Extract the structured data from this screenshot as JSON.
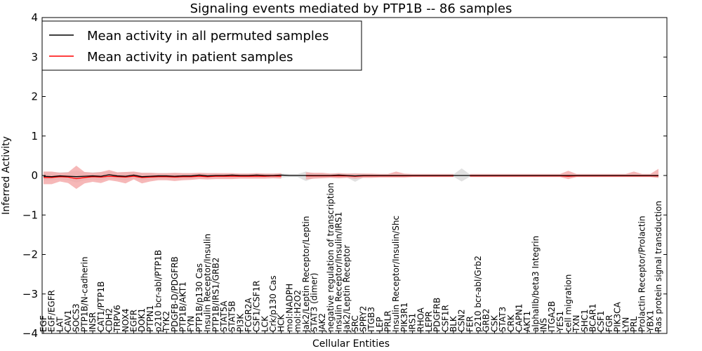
{
  "chart_data": {
    "type": "line",
    "title": "Signaling events mediated by PTP1B -- 86 samples",
    "xlabel": "Cellular Entities",
    "ylabel": "Inferred Activity",
    "ylim": [
      -4,
      4
    ],
    "yticks": [
      -4,
      -3,
      -2,
      -1,
      0,
      1,
      2,
      3,
      4
    ],
    "ytick_labels": [
      "−4",
      "−3",
      "−2",
      "−1",
      "0",
      "1",
      "2",
      "3",
      "4"
    ],
    "legend_position": "top-left",
    "categories": [
      "EGF",
      "EGF/EGFR",
      "LAT",
      "CAV1",
      "SOCS3",
      "PTP1B/N-cadherin",
      "INSR",
      "CAT1/PTP1B",
      "CDH2",
      "TRPV6",
      "NOX4",
      "EGFR",
      "DOK1",
      "PTPN1",
      "p210 bcr-abl/PTP1B",
      "TYK2",
      "PDGFB-D/PDGFRB",
      "PTP1B/AKT1",
      "FYN",
      "PTP1B/p130 Cas",
      "Insulin Receptor/Insulin",
      "PTP1B/IRS1/GRB2",
      "STAT5A",
      "STAT5B",
      "PI3K",
      "FCGR2A",
      "CSF1/CSF1R",
      "LCK",
      "Crk/p130 Cas",
      "HCK",
      "mol:NADPH",
      "mol:H2O2",
      "Jak2/Leptin Receptor/Leptin",
      "STAT3 (dimer)",
      "JAK2",
      "negative regulation of transcription",
      "Insulin Receptor/Insulin/IRS1",
      "Jak2/Leptin Receptor",
      "SRC",
      "SPRY2",
      "ITGB3",
      "LEP",
      "PRLR",
      "Insulin Receptor/Insulin/Shc",
      "PIK3R1",
      "IRS1",
      "RHOA",
      "LEPR",
      "PDGFRB",
      "CSF1R",
      "BLK",
      "CSN2",
      "FER",
      "p210 bcr-abl/Grb2",
      "GRB2",
      "CSK",
      "STAT3",
      "CRK",
      "CAPN1",
      "AKT1",
      "alphaIIb/beta3 Integrin",
      "INS",
      "ITGA2B",
      "YES1",
      "cell migration",
      "TXN",
      "SHC1",
      "BCAR1",
      "CSF1",
      "FGR",
      "PIK3CA",
      "LYN",
      "PRL",
      "Prolactin Receptor/Prolactin",
      "YBX1",
      "Ras protein signal transduction"
    ],
    "series": [
      {
        "name": "Mean activity in all permuted samples",
        "color": "#000000",
        "values": [
          -0.02,
          -0.03,
          -0.01,
          -0.02,
          -0.03,
          -0.02,
          -0.01,
          -0.02,
          0.02,
          -0.01,
          -0.02,
          0.01,
          -0.03,
          -0.02,
          -0.01,
          -0.01,
          -0.02,
          -0.01,
          -0.01,
          0.01,
          -0.01,
          0.0,
          0.0,
          0.01,
          0.0,
          0.0,
          0.01,
          0.0,
          0.0,
          0.01,
          0.0,
          0.0,
          0.0,
          0.0,
          0.0,
          0.0,
          0.01,
          0.0,
          -0.01,
          0.0,
          0.0,
          0.0,
          0.0,
          0.0,
          0.0,
          0.0,
          0.0,
          0.0,
          0.0,
          0.0,
          0.0,
          0.0,
          0.0,
          0.0,
          0.0,
          0.0,
          0.0,
          0.0,
          0.0,
          0.0,
          0.0,
          0.0,
          0.0,
          0.0,
          0.0,
          0.0,
          0.0,
          0.0,
          0.0,
          0.0,
          0.0,
          0.0,
          0.0,
          0.0,
          0.0,
          0.0
        ]
      },
      {
        "name": "Mean activity in patient samples",
        "color": "#ff0000",
        "fill": "#f4a6a6",
        "values": [
          -0.05,
          -0.05,
          -0.03,
          -0.04,
          -0.08,
          -0.05,
          -0.03,
          -0.04,
          -0.02,
          -0.03,
          -0.04,
          -0.02,
          -0.05,
          -0.04,
          -0.03,
          -0.03,
          -0.04,
          -0.03,
          -0.03,
          -0.02,
          -0.03,
          -0.02,
          -0.02,
          -0.02,
          -0.02,
          -0.02,
          -0.02,
          -0.02,
          -0.01,
          -0.02,
          null,
          null,
          -0.01,
          -0.01,
          -0.01,
          -0.01,
          -0.01,
          -0.01,
          -0.02,
          -0.01,
          -0.01,
          -0.01,
          -0.01,
          -0.01,
          -0.01,
          -0.01,
          -0.01,
          -0.01,
          -0.01,
          -0.01,
          -0.01,
          null,
          -0.01,
          -0.01,
          -0.01,
          -0.01,
          -0.01,
          -0.01,
          -0.01,
          -0.01,
          -0.01,
          -0.01,
          -0.01,
          -0.01,
          -0.02,
          -0.01,
          -0.01,
          -0.01,
          -0.01,
          -0.01,
          -0.01,
          -0.01,
          -0.01,
          -0.01,
          -0.01,
          -0.01
        ],
        "lower": [
          -0.22,
          -0.22,
          -0.15,
          -0.19,
          -0.34,
          -0.2,
          -0.16,
          -0.19,
          -0.12,
          -0.15,
          -0.2,
          -0.1,
          -0.2,
          -0.15,
          -0.12,
          -0.12,
          -0.14,
          -0.12,
          -0.11,
          -0.09,
          -0.1,
          -0.09,
          -0.09,
          -0.09,
          -0.08,
          -0.08,
          -0.08,
          -0.08,
          -0.07,
          -0.08,
          null,
          null,
          -0.1,
          -0.08,
          -0.07,
          -0.06,
          -0.07,
          -0.06,
          -0.08,
          -0.06,
          -0.06,
          -0.05,
          -0.05,
          -0.05,
          -0.05,
          -0.04,
          -0.04,
          -0.04,
          -0.04,
          -0.04,
          -0.04,
          null,
          -0.04,
          -0.04,
          -0.04,
          -0.04,
          -0.04,
          -0.04,
          -0.04,
          -0.04,
          -0.04,
          -0.04,
          -0.04,
          -0.04,
          -0.09,
          -0.04,
          -0.04,
          -0.04,
          -0.04,
          -0.04,
          -0.04,
          -0.04,
          -0.04,
          -0.04,
          -0.04,
          -0.06
        ],
        "upper": [
          0.1,
          0.1,
          0.07,
          0.08,
          0.25,
          0.09,
          0.07,
          0.09,
          0.14,
          0.08,
          0.09,
          0.1,
          0.07,
          0.07,
          0.06,
          0.06,
          0.07,
          0.06,
          0.06,
          0.07,
          0.06,
          0.06,
          0.06,
          0.06,
          0.05,
          0.05,
          0.06,
          0.05,
          0.05,
          0.06,
          null,
          null,
          0.08,
          0.07,
          0.07,
          0.05,
          0.06,
          0.05,
          0.05,
          0.05,
          0.05,
          0.04,
          0.04,
          0.1,
          0.05,
          0.04,
          0.04,
          0.04,
          0.04,
          0.04,
          0.04,
          null,
          0.04,
          0.04,
          0.04,
          0.04,
          0.04,
          0.04,
          0.04,
          0.04,
          0.04,
          0.04,
          0.04,
          0.04,
          0.12,
          0.04,
          0.04,
          0.04,
          0.04,
          0.04,
          0.04,
          0.04,
          0.1,
          0.04,
          0.04,
          0.17
        ]
      }
    ],
    "permuted_band": {
      "color": "#c8c8c8",
      "lower": [
        -0.12,
        -0.12,
        -0.1,
        -0.12,
        -0.18,
        -0.12,
        -0.1,
        -0.12,
        -0.08,
        -0.1,
        -0.12,
        -0.08,
        -0.12,
        -0.1,
        -0.08,
        -0.08,
        -0.09,
        -0.08,
        -0.08,
        -0.06,
        -0.07,
        -0.06,
        -0.06,
        -0.06,
        -0.05,
        -0.05,
        -0.05,
        -0.05,
        -0.05,
        -0.05,
        -0.04,
        -0.04,
        -0.14,
        -0.06,
        -0.05,
        -0.05,
        -0.06,
        -0.05,
        -0.16,
        -0.05,
        -0.04,
        -0.04,
        -0.04,
        -0.04,
        -0.04,
        -0.03,
        -0.03,
        -0.03,
        -0.03,
        -0.03,
        -0.03,
        -0.15,
        -0.03,
        -0.03,
        -0.03,
        -0.03,
        -0.03,
        -0.03,
        -0.03,
        -0.03,
        -0.03,
        -0.03,
        -0.03,
        -0.03,
        -0.03,
        -0.03,
        -0.03,
        -0.03,
        -0.03,
        -0.03,
        -0.03,
        -0.03,
        -0.03,
        -0.03,
        -0.03,
        -0.06
      ],
      "upper": [
        0.09,
        0.09,
        0.08,
        0.09,
        0.12,
        0.09,
        0.08,
        0.09,
        0.1,
        0.08,
        0.09,
        0.09,
        0.07,
        0.07,
        0.06,
        0.06,
        0.06,
        0.06,
        0.06,
        0.06,
        0.06,
        0.06,
        0.05,
        0.05,
        0.05,
        0.05,
        0.05,
        0.05,
        0.05,
        0.05,
        0.04,
        0.04,
        0.1,
        0.05,
        0.05,
        0.05,
        0.06,
        0.05,
        0.06,
        0.05,
        0.04,
        0.04,
        0.04,
        0.04,
        0.04,
        0.03,
        0.03,
        0.03,
        0.03,
        0.03,
        0.03,
        0.18,
        0.03,
        0.03,
        0.03,
        0.03,
        0.03,
        0.03,
        0.03,
        0.03,
        0.03,
        0.03,
        0.03,
        0.03,
        0.03,
        0.03,
        0.03,
        0.03,
        0.03,
        0.03,
        0.03,
        0.03,
        0.03,
        0.03,
        0.03,
        0.04
      ]
    }
  }
}
